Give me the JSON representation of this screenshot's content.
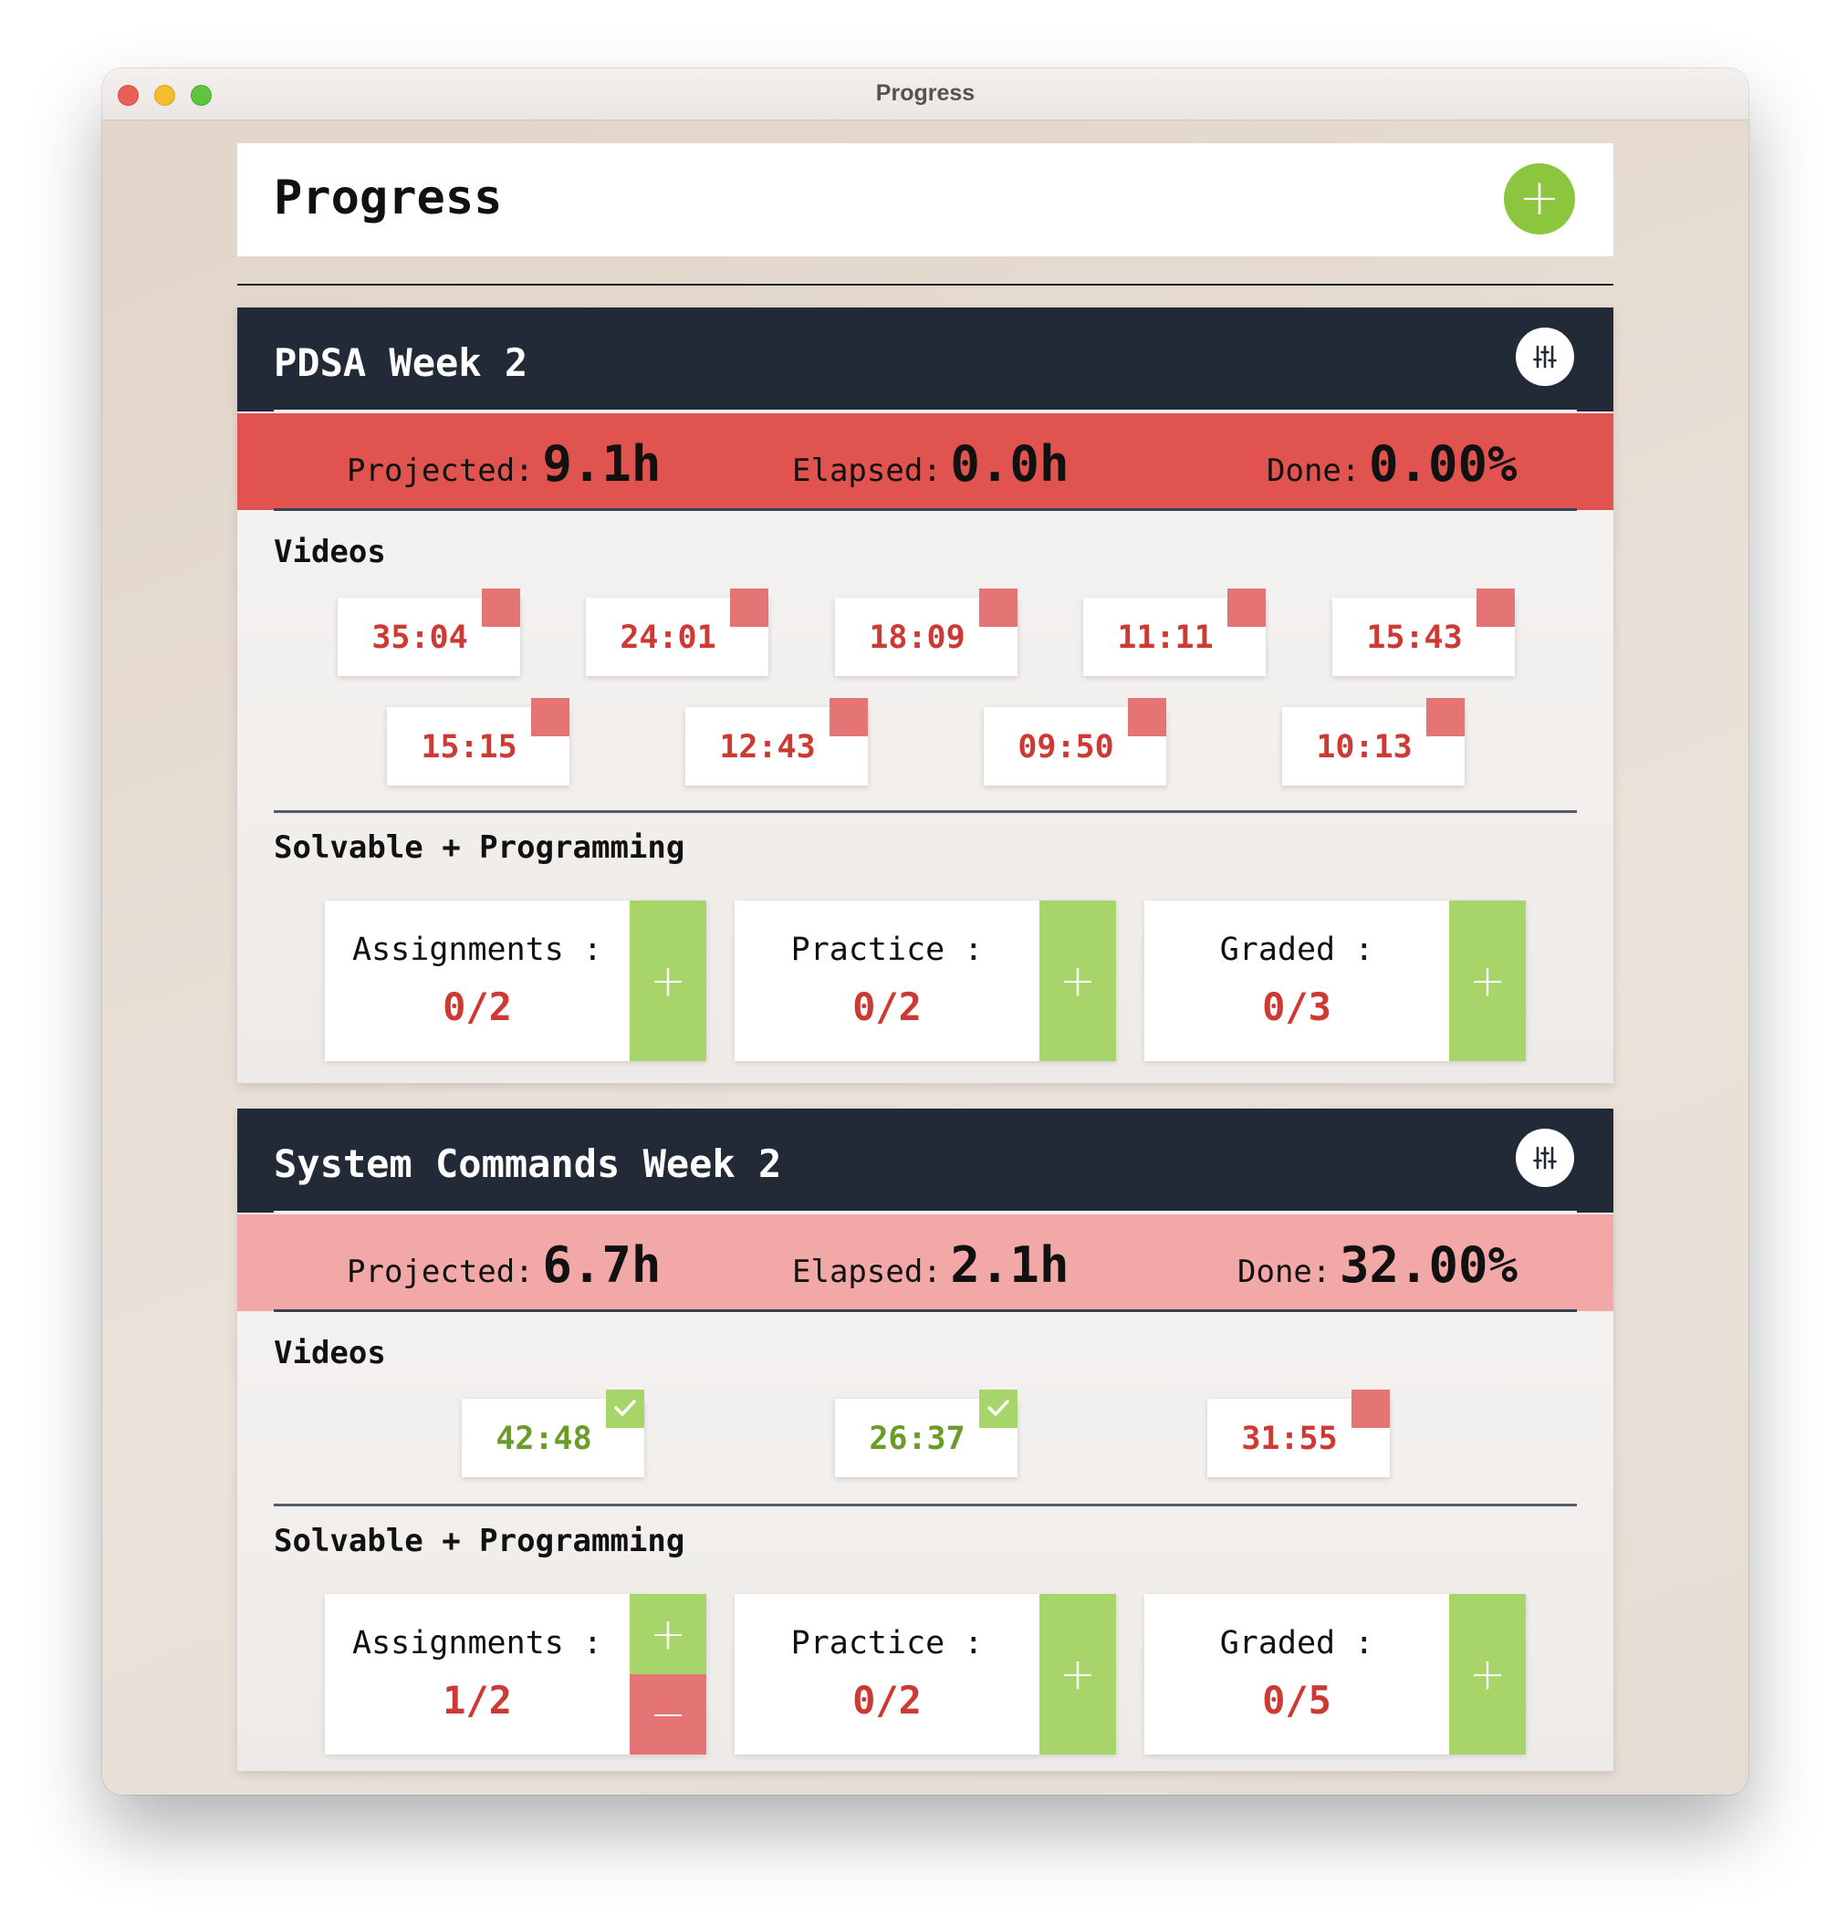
{
  "window": {
    "title": "Progress"
  },
  "header": {
    "title": "Progress",
    "add_icon": "plus-icon",
    "add_symbol": "+"
  },
  "colors": {
    "accent_green": "#8cc63f",
    "done_red": "#e0534e",
    "partial_pink": "#f1a8a7",
    "dark_header": "#222937",
    "video_red": "#cc3a33",
    "video_green": "#6c9c28"
  },
  "courses": [
    {
      "title": "PDSA Week 2",
      "stats": {
        "projected_label": "Projected:",
        "projected": "9.1h",
        "elapsed_label": "Elapsed:",
        "elapsed": "0.0h",
        "done_label": "Done:",
        "done": "0.00%"
      },
      "videos_label": "Videos",
      "videos": [
        {
          "time": "35:04",
          "watched": false
        },
        {
          "time": "24:01",
          "watched": false
        },
        {
          "time": "18:09",
          "watched": false
        },
        {
          "time": "11:11",
          "watched": false
        },
        {
          "time": "15:43",
          "watched": false
        },
        {
          "time": "15:15",
          "watched": false
        },
        {
          "time": "12:43",
          "watched": false
        },
        {
          "time": "09:50",
          "watched": false
        },
        {
          "time": "10:13",
          "watched": false
        }
      ],
      "solvable_label": "Solvable + Programming",
      "counters": [
        {
          "label": "Assignments :",
          "value": "0/2",
          "plus": "+"
        },
        {
          "label": "Practice :",
          "value": "0/2",
          "plus": "+"
        },
        {
          "label": "Graded :",
          "value": "0/3",
          "plus": "+"
        }
      ]
    },
    {
      "title": "System Commands Week 2",
      "stats": {
        "projected_label": "Projected:",
        "projected": "6.7h",
        "elapsed_label": "Elapsed:",
        "elapsed": "2.1h",
        "done_label": "Done:",
        "done": "32.00%"
      },
      "videos_label": "Videos",
      "videos": [
        {
          "time": "42:48",
          "watched": true
        },
        {
          "time": "26:37",
          "watched": true
        },
        {
          "time": "31:55",
          "watched": false
        }
      ],
      "solvable_label": "Solvable + Programming",
      "counters": [
        {
          "label": "Assignments :",
          "value": "1/2",
          "plus": "+",
          "minus": "−"
        },
        {
          "label": "Practice :",
          "value": "0/2",
          "plus": "+"
        },
        {
          "label": "Graded :",
          "value": "0/5",
          "plus": "+"
        }
      ]
    }
  ]
}
